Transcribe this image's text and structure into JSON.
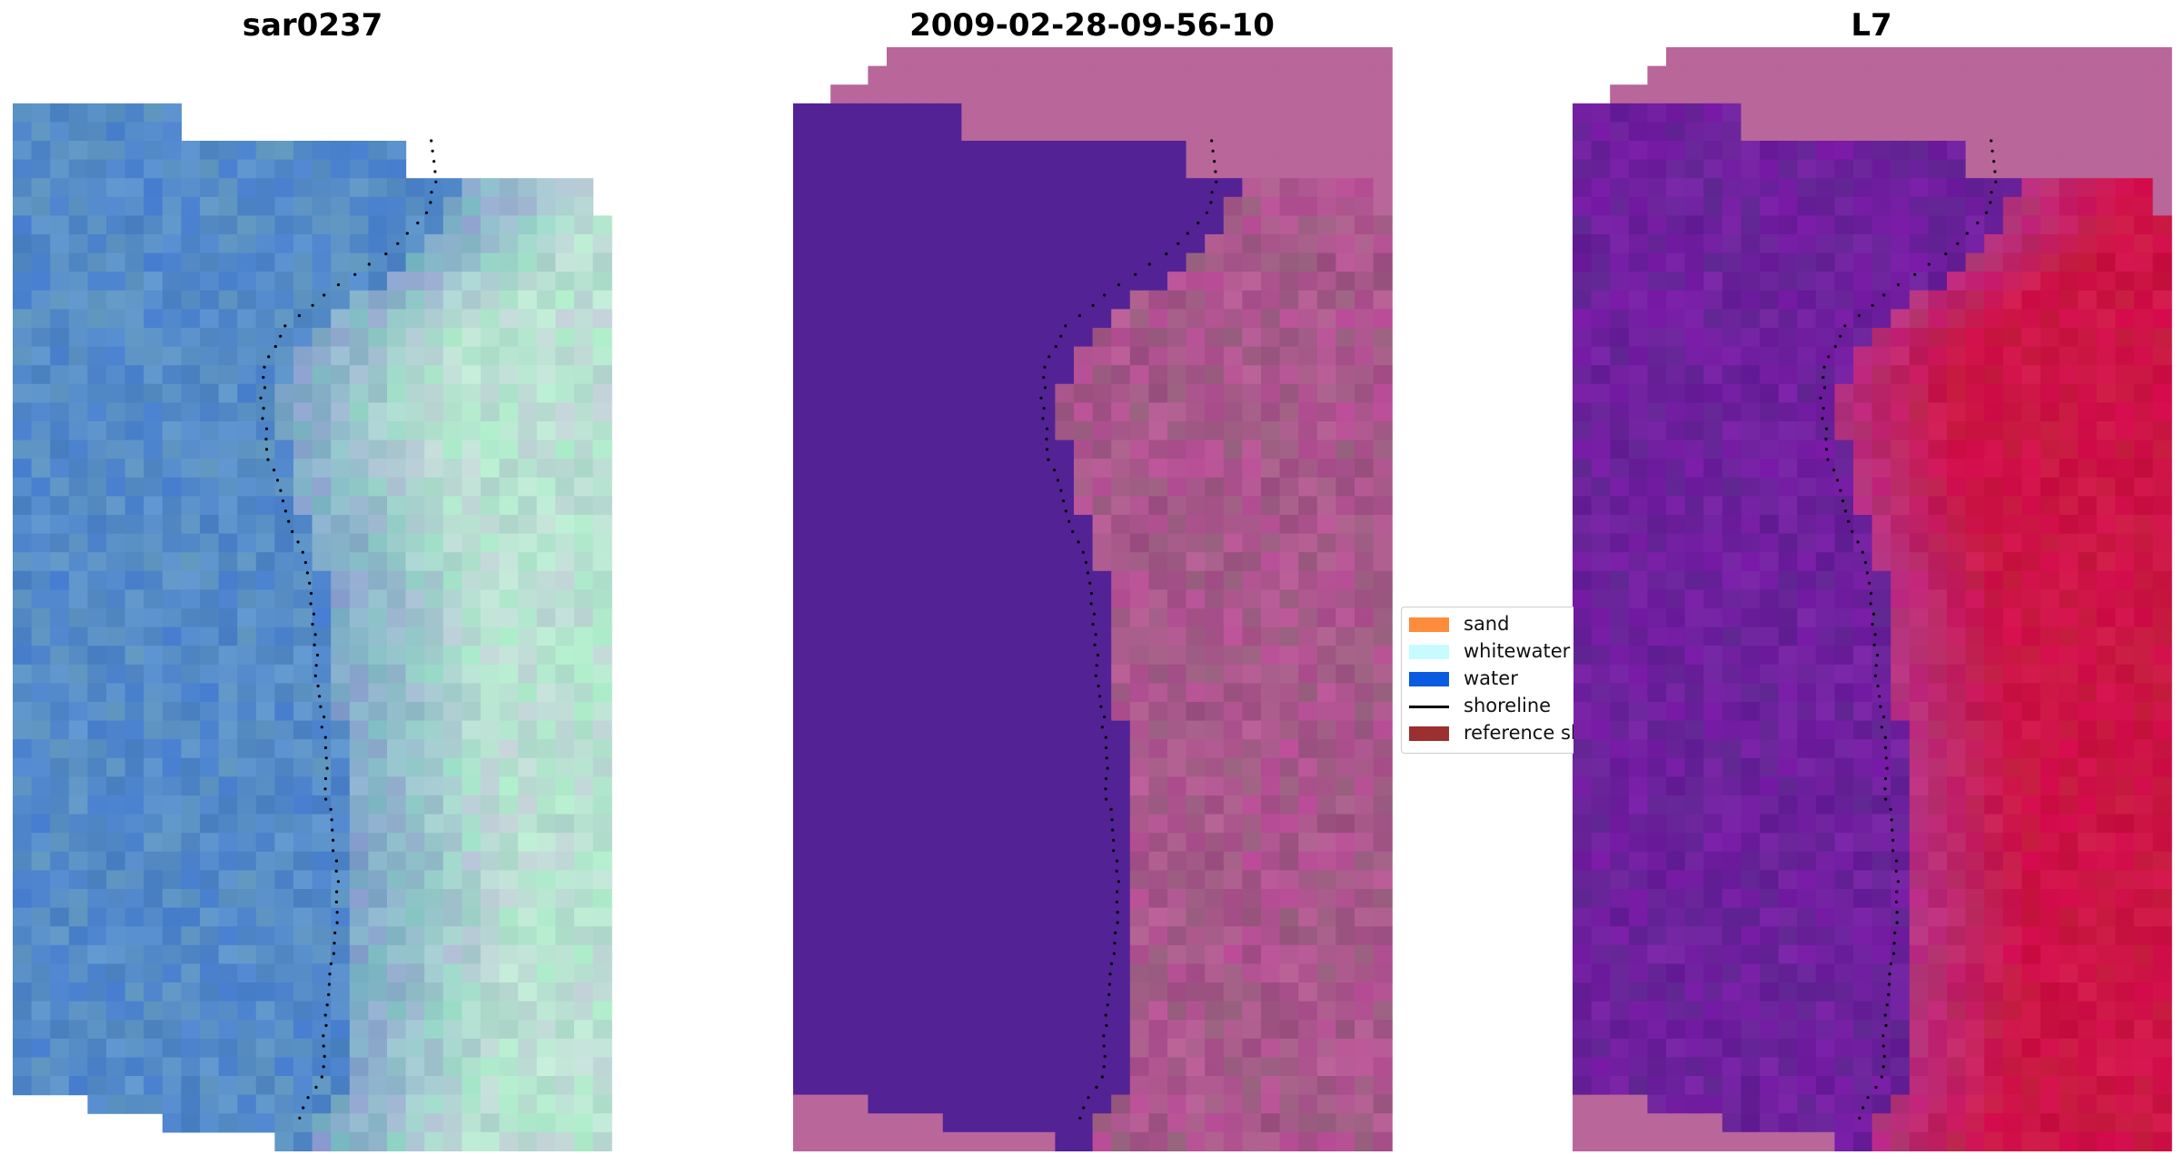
{
  "panels": [
    {
      "title": "sar0237",
      "style": "rgb",
      "base_color": "#4a7fbf",
      "land_color": "#a8d8c8"
    },
    {
      "title": "2009-02-28-09-56-10",
      "style": "classified",
      "base_color": "#532396",
      "land_color": "#b9669a"
    },
    {
      "title": "L7",
      "style": "index",
      "base_color": "#6a1d9a",
      "land_color": "#c2073b"
    }
  ],
  "legend": {
    "items": [
      {
        "label": "sand",
        "kind": "swatch",
        "color": "#ff8c3a"
      },
      {
        "label": "whitewater",
        "kind": "swatch",
        "color": "#c8fbff"
      },
      {
        "label": "water",
        "kind": "swatch",
        "color": "#0a5be0"
      },
      {
        "label": "shoreline",
        "kind": "line",
        "color": "#000000"
      },
      {
        "label": "reference shoreline",
        "kind": "swatch",
        "color": "#9c2f2f"
      }
    ]
  },
  "colors": {
    "nodata_fill": "#ffffff",
    "frame_fill_classified": "#b9669a",
    "shoreline_dots": "#000000"
  }
}
